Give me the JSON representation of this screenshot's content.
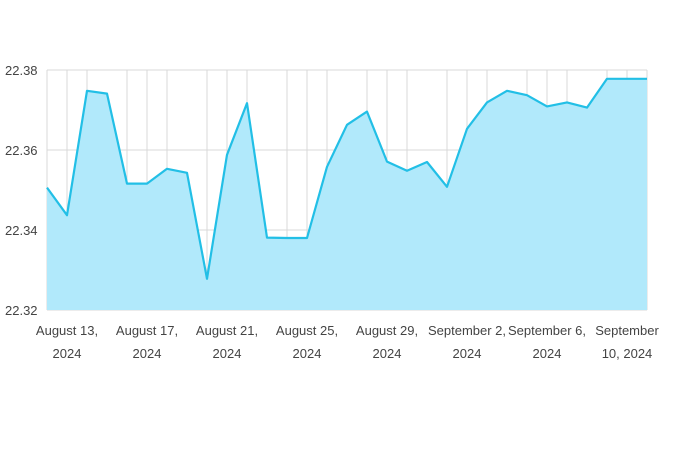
{
  "colors": {
    "line": "#22bfe6",
    "area": "#b1e9fb",
    "grid": "#d8d8d8",
    "axis_text": "#444444"
  },
  "chart_data": {
    "type": "area",
    "title": "",
    "xlabel": "",
    "ylabel": "",
    "grid": true,
    "legend": "none",
    "ylim": [
      22.32,
      22.38
    ],
    "yticks": [
      22.32,
      22.34,
      22.36,
      22.38
    ],
    "ytick_labels": [
      "22.32",
      "22.34",
      "22.36",
      "22.38"
    ],
    "xlim": [
      "2024-08-12",
      "2024-09-11"
    ],
    "xticks": [
      {
        "date": "2024-08-13",
        "line1": "August 13,",
        "line2": "2024"
      },
      {
        "date": "2024-08-17",
        "line1": "August 17,",
        "line2": "2024"
      },
      {
        "date": "2024-08-21",
        "line1": "August 21,",
        "line2": "2024"
      },
      {
        "date": "2024-08-25",
        "line1": "August 25,",
        "line2": "2024"
      },
      {
        "date": "2024-08-29",
        "line1": "August 29,",
        "line2": "2024"
      },
      {
        "date": "2024-09-02",
        "line1": "September 2,",
        "line2": "2024"
      },
      {
        "date": "2024-09-06",
        "line1": "September 6,",
        "line2": "2024"
      },
      {
        "date": "2024-09-10",
        "line1": "September",
        "line2": "10, 2024"
      }
    ],
    "x": [
      "2024-08-12",
      "2024-08-13",
      "2024-08-14",
      "2024-08-15",
      "2024-08-16",
      "2024-08-17",
      "2024-08-18",
      "2024-08-19",
      "2024-08-20",
      "2024-08-21",
      "2024-08-22",
      "2024-08-23",
      "2024-08-24",
      "2024-08-25",
      "2024-08-26",
      "2024-08-27",
      "2024-08-28",
      "2024-08-29",
      "2024-08-30",
      "2024-08-31",
      "2024-09-01",
      "2024-09-02",
      "2024-09-03",
      "2024-09-04",
      "2024-09-05",
      "2024-09-06",
      "2024-09-07",
      "2024-09-08",
      "2024-09-09",
      "2024-09-10",
      "2024-09-11"
    ],
    "series": [
      {
        "values": [
          22.3506,
          22.3437,
          22.3748,
          22.3741,
          22.3516,
          22.3516,
          22.3553,
          22.3543,
          22.3278,
          22.3588,
          22.3717,
          22.3381,
          22.338,
          22.338,
          22.3558,
          22.3663,
          22.3696,
          22.3571,
          22.3548,
          22.357,
          22.3508,
          22.3653,
          22.3719,
          22.3748,
          22.3737,
          22.3709,
          22.3719,
          22.3706,
          22.3778,
          22.3778,
          22.3778
        ]
      }
    ]
  }
}
